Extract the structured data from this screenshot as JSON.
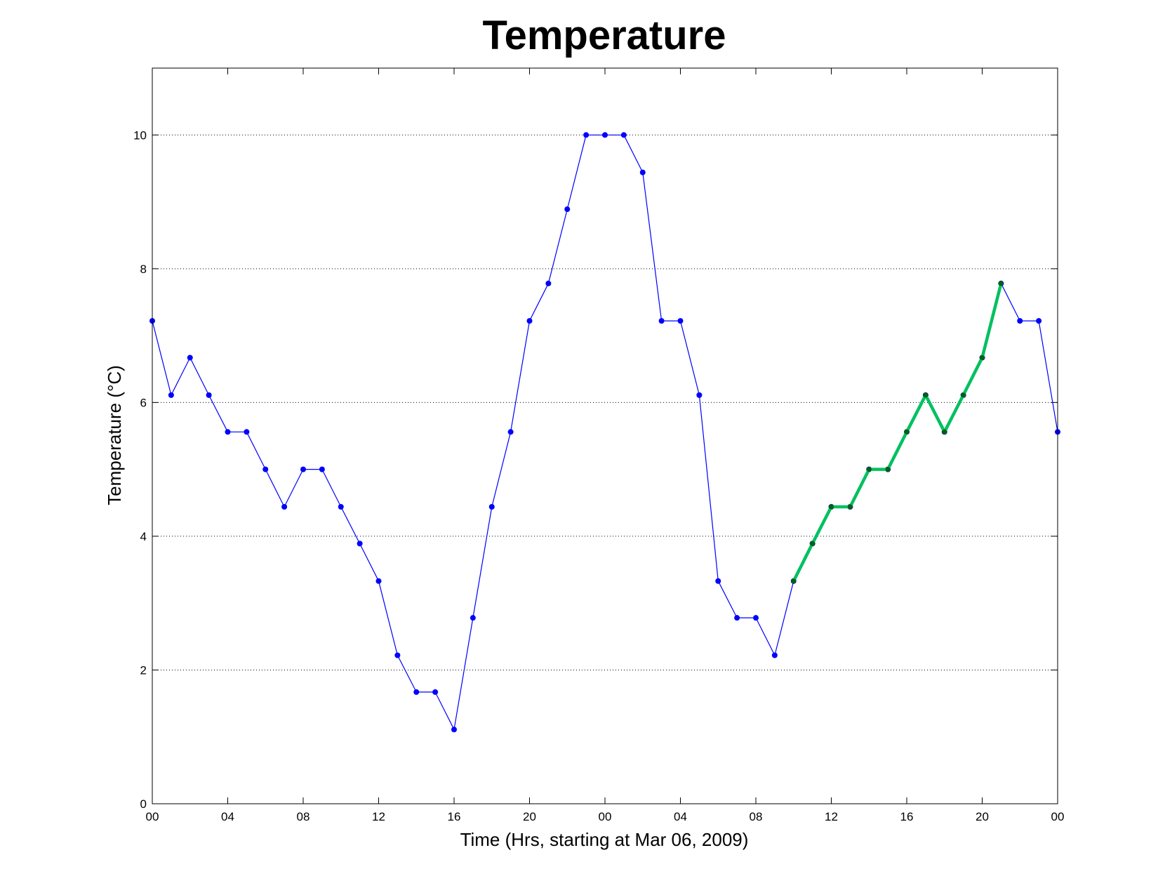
{
  "chart_data": {
    "type": "line",
    "title": "Temperature",
    "xlabel": "Time (Hrs, starting at Mar 06, 2009)",
    "ylabel": "Temperature (°C)",
    "xlim": [
      0,
      48
    ],
    "ylim": [
      0,
      11
    ],
    "x_ticks": [
      0,
      4,
      8,
      12,
      16,
      20,
      24,
      28,
      32,
      36,
      40,
      44,
      48
    ],
    "x_tick_labels": [
      "00",
      "04",
      "08",
      "12",
      "16",
      "20",
      "00",
      "04",
      "08",
      "12",
      "16",
      "20",
      "00"
    ],
    "y_ticks": [
      0,
      2,
      4,
      6,
      8,
      10
    ],
    "y_tick_labels": [
      "0",
      "2",
      "4",
      "6",
      "8",
      "10"
    ],
    "grid": "horizontal dotted at y ticks",
    "legend": "none",
    "series": [
      {
        "color": "#0000ff",
        "marker": "dot",
        "x": [
          0,
          1,
          2,
          3,
          4,
          5,
          6,
          7,
          8,
          9,
          10,
          11,
          12,
          13,
          14,
          15,
          16,
          17,
          18,
          19,
          20,
          21,
          22,
          23,
          24,
          25,
          26,
          27,
          28,
          29,
          30,
          31,
          32,
          33,
          34,
          35,
          36,
          37,
          38,
          39,
          40,
          41,
          42,
          43,
          44,
          45,
          46,
          47,
          48
        ],
        "values": [
          7.22,
          6.11,
          6.67,
          6.11,
          5.56,
          5.56,
          5.0,
          4.44,
          5.0,
          5.0,
          4.44,
          3.89,
          3.33,
          2.22,
          1.67,
          1.67,
          1.11,
          2.78,
          4.44,
          5.56,
          7.22,
          7.78,
          8.89,
          10.0,
          10.0,
          10.0,
          9.44,
          7.22,
          7.22,
          6.11,
          3.33,
          2.78,
          2.78,
          2.22,
          3.33,
          3.89,
          4.44,
          4.44,
          5.0,
          5.0,
          5.56,
          6.11,
          5.56,
          6.11,
          6.67,
          7.78,
          7.22,
          7.22,
          5.56
        ]
      },
      {
        "color": "#00c060",
        "marker": "dot",
        "marker_color": "#006400",
        "x": [
          34,
          35,
          36,
          37,
          38,
          39,
          40,
          41,
          42,
          43,
          44,
          45
        ],
        "values": [
          3.33,
          3.89,
          4.44,
          4.44,
          5.0,
          5.0,
          5.56,
          6.11,
          5.56,
          6.11,
          6.67,
          7.78
        ]
      }
    ]
  }
}
